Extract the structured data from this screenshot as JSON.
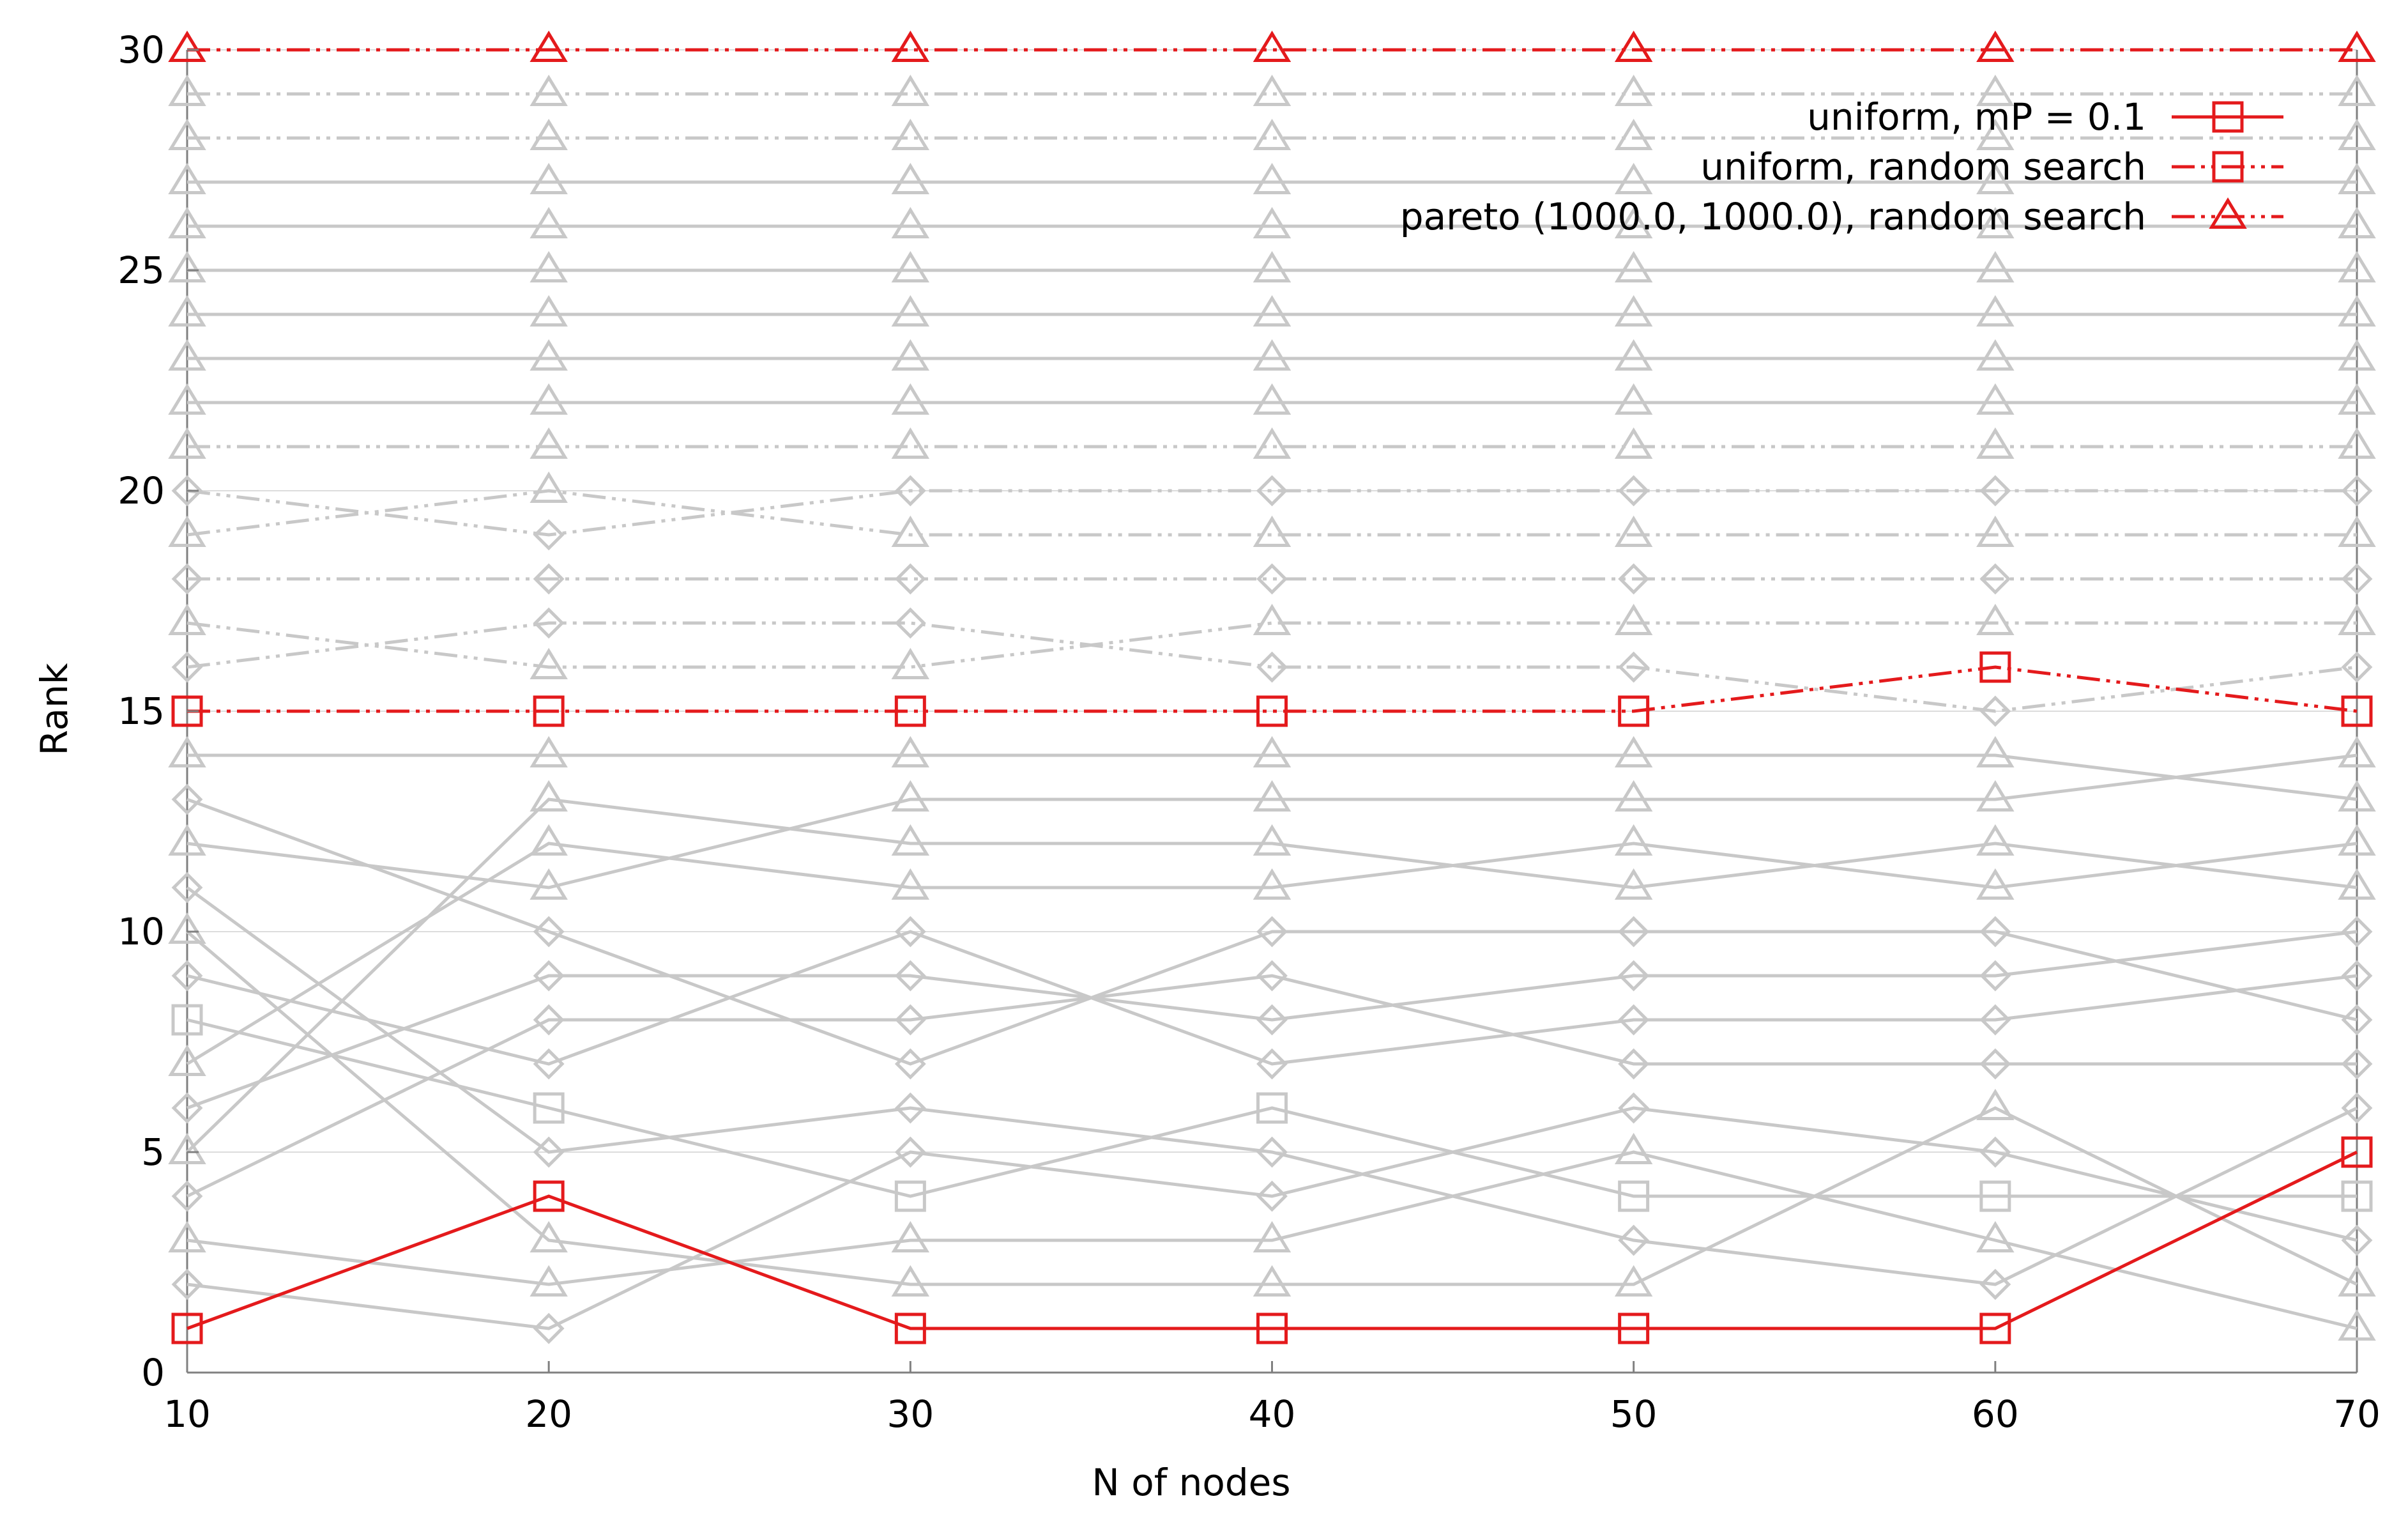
{
  "chart_data": {
    "type": "line",
    "title": "",
    "xlabel": "N of nodes",
    "ylabel": "Rank",
    "x": [
      10,
      20,
      30,
      40,
      50,
      60,
      70
    ],
    "xlim": [
      10,
      70
    ],
    "ylim": [
      0,
      30
    ],
    "xticks": [
      "10",
      "20",
      "30",
      "40",
      "50",
      "60",
      "70"
    ],
    "yticks": [
      "0",
      "5",
      "10",
      "15",
      "20",
      "25",
      "30"
    ],
    "grid": "horizontal at y ticks",
    "legend_position": "top-right",
    "legend": [
      {
        "name": "uniform, mP = 0.1",
        "color": "#e41a1c",
        "dash": "solid",
        "marker": "square"
      },
      {
        "name": "uniform, random search",
        "color": "#e41a1c",
        "dash": "dash-dot-dot",
        "marker": "square"
      },
      {
        "name": "pareto (1000.0, 1000.0), random search",
        "color": "#e41a1c",
        "dash": "dash-dot-dot",
        "marker": "triangle"
      }
    ],
    "highlight_color": "#e41a1c",
    "background_color": "#c8c8c8",
    "series": [
      {
        "name": "uniform, mP = 0.1",
        "highlight": true,
        "dash": "solid",
        "marker": "square",
        "values": [
          1,
          4,
          1,
          1,
          1,
          1,
          5
        ]
      },
      {
        "name": "uniform, random search",
        "highlight": true,
        "dash": "dashdotdot",
        "marker": "square",
        "values": [
          15,
          15,
          15,
          15,
          15,
          16,
          15
        ]
      },
      {
        "name": "pareto (1000.0, 1000.0), random search",
        "highlight": true,
        "dash": "dashdotdot",
        "marker": "triangle",
        "values": [
          30,
          30,
          30,
          30,
          30,
          30,
          30
        ]
      },
      {
        "dash": "solid",
        "marker": "diamond",
        "values": [
          2,
          1,
          5,
          4,
          6,
          5,
          3
        ]
      },
      {
        "dash": "solid",
        "marker": "triangle",
        "values": [
          3,
          2,
          3,
          3,
          5,
          3,
          1
        ]
      },
      {
        "dash": "solid",
        "marker": "diamond",
        "values": [
          4,
          8,
          8,
          9,
          7,
          7,
          7
        ]
      },
      {
        "dash": "solid",
        "marker": "triangle",
        "values": [
          5,
          13,
          12,
          12,
          11,
          12,
          11
        ]
      },
      {
        "dash": "solid",
        "marker": "diamond",
        "values": [
          6,
          9,
          9,
          8,
          9,
          9,
          10
        ]
      },
      {
        "dash": "solid",
        "marker": "triangle",
        "values": [
          7,
          12,
          11,
          11,
          12,
          11,
          12
        ]
      },
      {
        "dash": "solid",
        "marker": "square",
        "values": [
          8,
          6,
          4,
          6,
          4,
          4,
          4
        ]
      },
      {
        "dash": "solid",
        "marker": "diamond",
        "values": [
          9,
          7,
          10,
          7,
          8,
          8,
          9
        ]
      },
      {
        "dash": "solid",
        "marker": "triangle",
        "values": [
          10,
          3,
          2,
          2,
          2,
          6,
          2
        ]
      },
      {
        "dash": "solid",
        "marker": "diamond",
        "values": [
          11,
          5,
          6,
          5,
          3,
          2,
          6
        ]
      },
      {
        "dash": "solid",
        "marker": "triangle",
        "values": [
          12,
          11,
          13,
          13,
          13,
          13,
          14
        ]
      },
      {
        "dash": "solid",
        "marker": "diamond",
        "values": [
          13,
          10,
          7,
          10,
          10,
          10,
          8
        ]
      },
      {
        "dash": "solid",
        "marker": "triangle",
        "values": [
          14,
          14,
          14,
          14,
          14,
          14,
          13
        ]
      },
      {
        "dash": "dashdotdot",
        "marker": "diamond",
        "values": [
          16,
          17,
          17,
          16,
          16,
          15,
          16
        ]
      },
      {
        "dash": "dashdotdot",
        "marker": "triangle",
        "values": [
          17,
          16,
          16,
          17,
          17,
          17,
          17
        ]
      },
      {
        "dash": "dashdotdot",
        "marker": "diamond",
        "values": [
          18,
          18,
          18,
          18,
          18,
          18,
          18
        ]
      },
      {
        "dash": "dashdotdot",
        "marker": "triangle",
        "values": [
          19,
          20,
          19,
          19,
          19,
          19,
          19
        ]
      },
      {
        "dash": "dashdotdot",
        "marker": "diamond",
        "values": [
          20,
          19,
          20,
          20,
          20,
          20,
          20
        ]
      },
      {
        "dash": "dashdotdot",
        "marker": "triangle",
        "values": [
          21,
          21,
          21,
          21,
          21,
          21,
          21
        ]
      },
      {
        "dash": "solid",
        "marker": "triangle",
        "values": [
          22,
          22,
          22,
          22,
          22,
          22,
          22
        ]
      },
      {
        "dash": "solid",
        "marker": "triangle",
        "values": [
          23,
          23,
          23,
          23,
          23,
          23,
          23
        ]
      },
      {
        "dash": "solid",
        "marker": "triangle",
        "values": [
          24,
          24,
          24,
          24,
          24,
          24,
          24
        ]
      },
      {
        "dash": "solid",
        "marker": "triangle",
        "values": [
          25,
          25,
          25,
          25,
          25,
          25,
          25
        ]
      },
      {
        "dash": "solid",
        "marker": "triangle",
        "values": [
          26,
          26,
          26,
          26,
          26,
          26,
          26
        ]
      },
      {
        "dash": "solid",
        "marker": "triangle",
        "values": [
          27,
          27,
          27,
          27,
          27,
          27,
          27
        ]
      },
      {
        "dash": "dashdotdot",
        "marker": "triangle",
        "values": [
          28,
          28,
          28,
          28,
          28,
          28,
          28
        ]
      },
      {
        "dash": "dashdotdot",
        "marker": "triangle",
        "values": [
          29,
          29,
          29,
          29,
          29,
          29,
          29
        ]
      }
    ]
  }
}
